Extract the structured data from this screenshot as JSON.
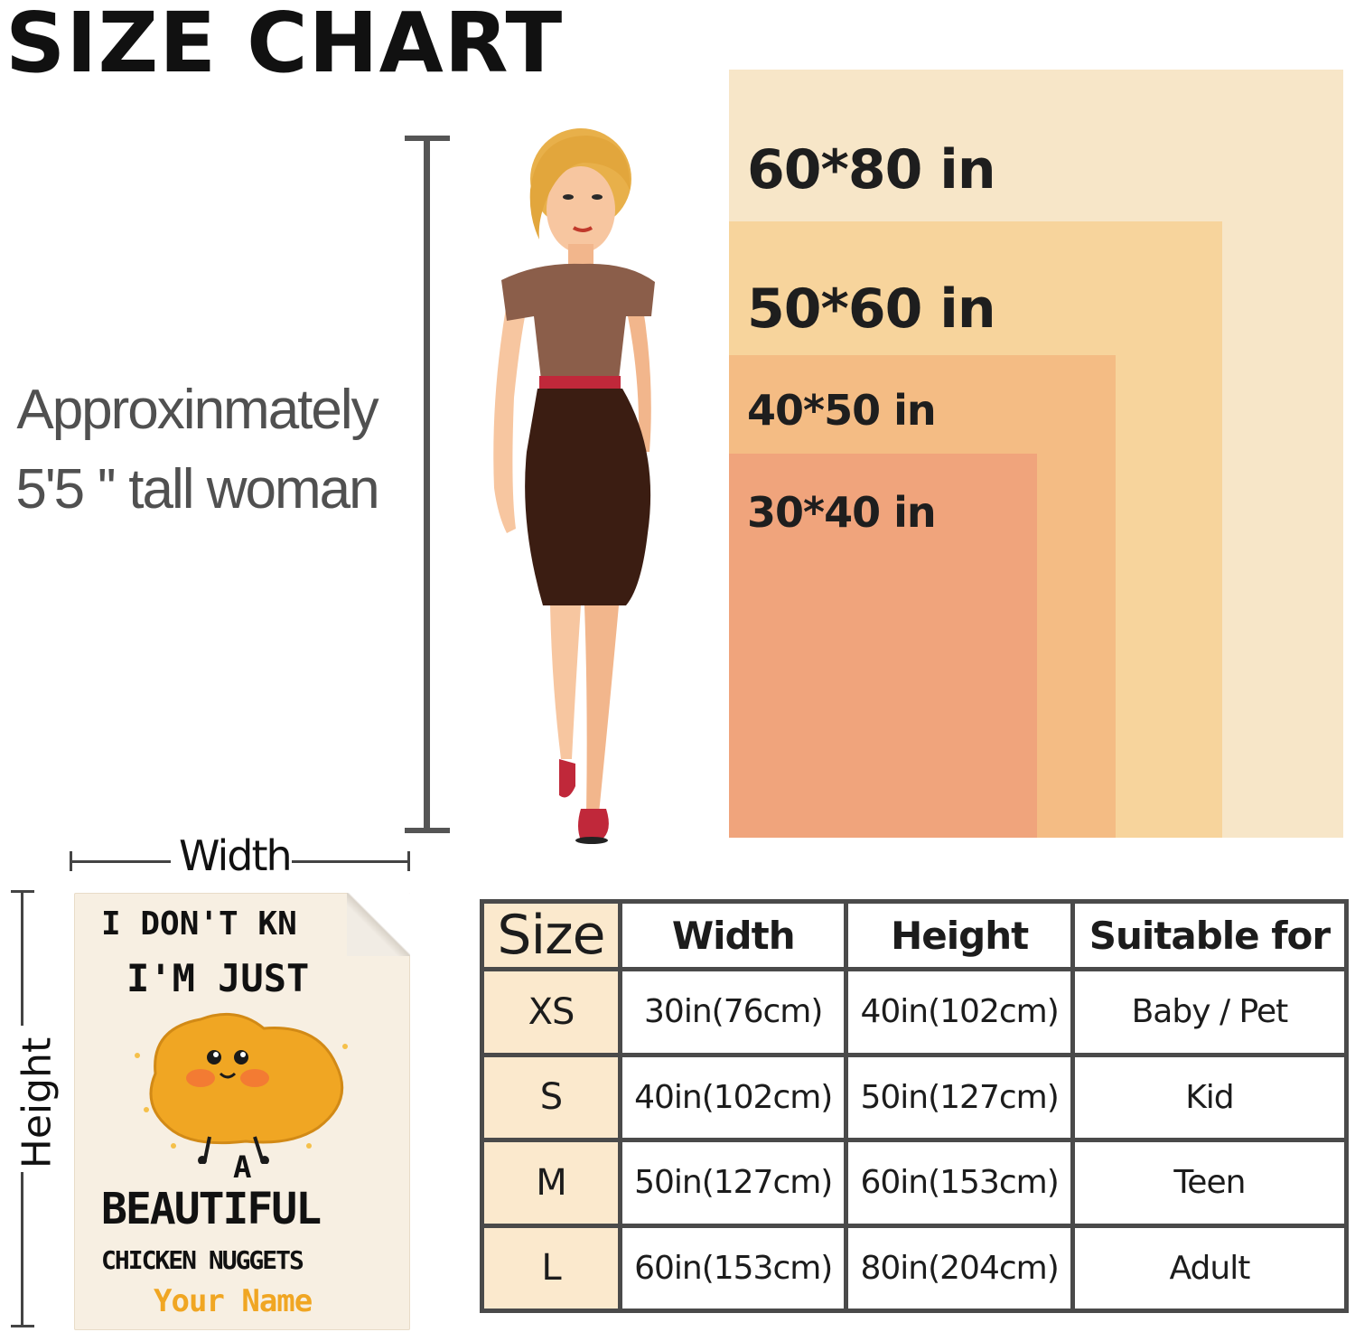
{
  "title": "SIZE CHART",
  "caption": {
    "line1": "Approxinmately",
    "line2": "5'5 '' tall woman"
  },
  "sizes_visual": [
    {
      "label": "60*80 in",
      "color": "#f7e6c8"
    },
    {
      "label": "50*60 in",
      "color": "#f7d49c"
    },
    {
      "label": "40*50 in",
      "color": "#f4bc84"
    },
    {
      "label": "30*40 in",
      "color": "#f0a47c"
    }
  ],
  "dimension_labels": {
    "width": "Width",
    "height": "Height"
  },
  "blanket": {
    "line1": "I DON'T KN",
    "line2": "I'M JUST",
    "line3": "A",
    "line4": "BEAUTIFUL",
    "line5": "CHICKEN NUGGETS",
    "line6": "Your Name"
  },
  "table": {
    "headers": [
      "Size",
      "Width",
      "Height",
      "Suitable for"
    ],
    "rows": [
      [
        "XS",
        "30in(76cm)",
        "40in(102cm)",
        "Baby / Pet"
      ],
      [
        "S",
        "40in(102cm)",
        "50in(127cm)",
        "Kid"
      ],
      [
        "M",
        "50in(127cm)",
        "60in(153cm)",
        "Teen"
      ],
      [
        "L",
        "60in(153cm)",
        "80in(204cm)",
        "Adult"
      ]
    ]
  }
}
